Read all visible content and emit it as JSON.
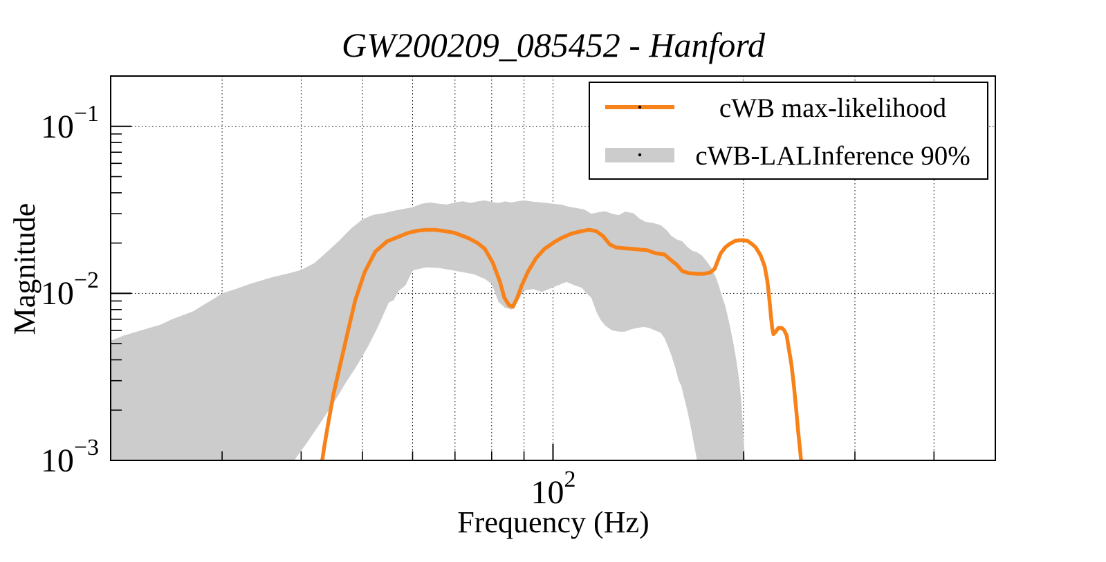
{
  "figure": {
    "background": "#ffffff",
    "accent_orange": "#f8821a",
    "band_gray": "#cccccc"
  },
  "chart_data": {
    "type": "line",
    "title": "GW200209_085452 - Hanford",
    "xlabel": "Frequency (Hz)",
    "ylabel": "Magnitude",
    "xscale": "log",
    "yscale": "log",
    "xlim": [
      20,
      500
    ],
    "ylim": [
      0.001,
      0.2
    ],
    "grid": {
      "x": [
        30,
        40,
        50,
        60,
        70,
        80,
        90,
        100,
        200,
        300,
        400
      ],
      "y": [
        0.01,
        0.1
      ],
      "style": "dotted"
    },
    "x_major_ticks": [
      100
    ],
    "x_minor_ticks": [
      30,
      40,
      50,
      60,
      70,
      80,
      90,
      200,
      300,
      400
    ],
    "y_major_ticks": [
      0.1,
      0.01,
      0.001
    ],
    "y_minor_ticks": [
      0.002,
      0.003,
      0.004,
      0.005,
      0.006,
      0.007,
      0.008,
      0.009,
      0.02,
      0.03,
      0.04,
      0.05,
      0.06,
      0.07,
      0.08,
      0.09
    ],
    "x_tick_labels": [
      {
        "base": "10",
        "exp": "2",
        "value": 100
      }
    ],
    "y_tick_labels": [
      {
        "base": "10",
        "exp": "−1",
        "value": 0.1
      },
      {
        "base": "10",
        "exp": "−2",
        "value": 0.01
      },
      {
        "base": "10",
        "exp": "−3",
        "value": 0.001
      }
    ],
    "legend": {
      "position": "upper right",
      "entries": [
        {
          "label": "cWB max-likelihood",
          "type": "line",
          "color": "#f8821a"
        },
        {
          "label": "cWB-LALInference 90%",
          "type": "band",
          "color": "#cccccc"
        }
      ]
    },
    "series": [
      {
        "name": "cWB max-likelihood",
        "type": "line",
        "color": "#f8821a",
        "points": [
          [
            43,
            0.0009
          ],
          [
            43.5,
            0.0012
          ],
          [
            44,
            0.00156
          ],
          [
            45,
            0.0025
          ],
          [
            46.3,
            0.004
          ],
          [
            47.4,
            0.0059
          ],
          [
            48.7,
            0.0091
          ],
          [
            50.4,
            0.0134
          ],
          [
            52.4,
            0.0178
          ],
          [
            54.7,
            0.0205
          ],
          [
            57,
            0.0218
          ],
          [
            59,
            0.023
          ],
          [
            61,
            0.0237
          ],
          [
            63,
            0.024
          ],
          [
            65,
            0.024
          ],
          [
            67.5,
            0.0236
          ],
          [
            70,
            0.023
          ],
          [
            73.5,
            0.0214
          ],
          [
            76,
            0.02
          ],
          [
            78,
            0.0185
          ],
          [
            80.3,
            0.0153
          ],
          [
            82.4,
            0.0118
          ],
          [
            83.8,
            0.0094
          ],
          [
            85.2,
            0.0085
          ],
          [
            86.4,
            0.0083
          ],
          [
            87.8,
            0.0094
          ],
          [
            89.2,
            0.0111
          ],
          [
            91.3,
            0.0135
          ],
          [
            94.1,
            0.0163
          ],
          [
            97,
            0.0185
          ],
          [
            100.7,
            0.0204
          ],
          [
            103,
            0.0214
          ],
          [
            107,
            0.0228
          ],
          [
            111,
            0.0236
          ],
          [
            114,
            0.024
          ],
          [
            117,
            0.0236
          ],
          [
            120,
            0.022
          ],
          [
            123,
            0.0196
          ],
          [
            126,
            0.0188
          ],
          [
            130,
            0.0186
          ],
          [
            135,
            0.0184
          ],
          [
            141,
            0.0181
          ],
          [
            145,
            0.0174
          ],
          [
            150,
            0.0171
          ],
          [
            153,
            0.016
          ],
          [
            157,
            0.0148
          ],
          [
            160,
            0.0136
          ],
          [
            164,
            0.0132
          ],
          [
            169,
            0.0131
          ],
          [
            173,
            0.0131
          ],
          [
            177,
            0.0133
          ],
          [
            180,
            0.014
          ],
          [
            184,
            0.0173
          ],
          [
            187,
            0.0188
          ],
          [
            190,
            0.0197
          ],
          [
            194,
            0.0206
          ],
          [
            197,
            0.0208
          ],
          [
            200,
            0.0208
          ],
          [
            203,
            0.0206
          ],
          [
            206,
            0.0198
          ],
          [
            209,
            0.0189
          ],
          [
            213,
            0.0168
          ],
          [
            216,
            0.0145
          ],
          [
            218,
            0.012
          ],
          [
            219.5,
            0.0096
          ],
          [
            221,
            0.0073
          ],
          [
            222,
            0.0062
          ],
          [
            223,
            0.0057
          ],
          [
            225,
            0.0059
          ],
          [
            227,
            0.0062
          ],
          [
            230,
            0.0062
          ],
          [
            232,
            0.006
          ],
          [
            234,
            0.0056
          ],
          [
            236,
            0.0046
          ],
          [
            238,
            0.0038
          ],
          [
            240,
            0.0029
          ],
          [
            242,
            0.0021
          ],
          [
            244,
            0.0015
          ],
          [
            246,
            0.0011
          ],
          [
            247.5,
            0.00085
          ]
        ]
      },
      {
        "name": "cWB-LALInference 90%",
        "type": "band",
        "color": "#cccccc",
        "upper": [
          [
            20,
            0.0052
          ],
          [
            21,
            0.0056
          ],
          [
            22,
            0.0059
          ],
          [
            23,
            0.0062
          ],
          [
            24,
            0.0065
          ],
          [
            25,
            0.007
          ],
          [
            26,
            0.0074
          ],
          [
            27,
            0.0078
          ],
          [
            28,
            0.0085
          ],
          [
            29,
            0.0092
          ],
          [
            30,
            0.01
          ],
          [
            31.5,
            0.0106
          ],
          [
            33,
            0.0113
          ],
          [
            34.5,
            0.0119
          ],
          [
            36,
            0.0125
          ],
          [
            38,
            0.0131
          ],
          [
            40,
            0.0138
          ],
          [
            42,
            0.0152
          ],
          [
            44,
            0.0178
          ],
          [
            46,
            0.0208
          ],
          [
            48,
            0.0245
          ],
          [
            50,
            0.0278
          ],
          [
            52,
            0.0295
          ],
          [
            54,
            0.0302
          ],
          [
            56,
            0.0312
          ],
          [
            58,
            0.032
          ],
          [
            60,
            0.0328
          ],
          [
            62,
            0.0344
          ],
          [
            64,
            0.035
          ],
          [
            66,
            0.0344
          ],
          [
            68,
            0.034
          ],
          [
            70,
            0.035
          ],
          [
            72,
            0.0356
          ],
          [
            74,
            0.0348
          ],
          [
            76,
            0.0355
          ],
          [
            78,
            0.036
          ],
          [
            80,
            0.0352
          ],
          [
            82,
            0.0348
          ],
          [
            84,
            0.0355
          ],
          [
            86,
            0.035
          ],
          [
            88,
            0.0356
          ],
          [
            90,
            0.036
          ],
          [
            93,
            0.0354
          ],
          [
            96,
            0.035
          ],
          [
            100,
            0.0344
          ],
          [
            103,
            0.034
          ],
          [
            106,
            0.033
          ],
          [
            109,
            0.0324
          ],
          [
            112,
            0.0318
          ],
          [
            115,
            0.03
          ],
          [
            118,
            0.0306
          ],
          [
            121,
            0.031
          ],
          [
            124,
            0.03
          ],
          [
            127,
            0.0294
          ],
          [
            130,
            0.0308
          ],
          [
            134,
            0.0302
          ],
          [
            137,
            0.028
          ],
          [
            140,
            0.0268
          ],
          [
            144,
            0.0264
          ],
          [
            148,
            0.0256
          ],
          [
            151,
            0.024
          ],
          [
            154,
            0.022
          ],
          [
            157,
            0.021
          ],
          [
            160,
            0.0205
          ],
          [
            163,
            0.019
          ],
          [
            166,
            0.018
          ],
          [
            169,
            0.0176
          ],
          [
            172,
            0.0168
          ],
          [
            175,
            0.0155
          ],
          [
            178,
            0.0142
          ],
          [
            181,
            0.0124
          ],
          [
            183,
            0.011
          ],
          [
            185,
            0.0096
          ],
          [
            187,
            0.0085
          ],
          [
            189,
            0.0072
          ],
          [
            191,
            0.006
          ],
          [
            193,
            0.0049
          ],
          [
            195,
            0.0039
          ],
          [
            197,
            0.003
          ],
          [
            198.5,
            0.0022
          ],
          [
            200,
            0.0014
          ],
          [
            201,
            0.00105
          ],
          [
            201.8,
            0.0008
          ]
        ],
        "lower": [
          [
            20,
            0.0004
          ],
          [
            25,
            0.00045
          ],
          [
            30,
            0.00055
          ],
          [
            34,
            0.0007
          ],
          [
            37,
            0.00085
          ],
          [
            39,
            0.001
          ],
          [
            41,
            0.0013
          ],
          [
            43,
            0.0017
          ],
          [
            45,
            0.0022
          ],
          [
            47,
            0.0029
          ],
          [
            49,
            0.0037
          ],
          [
            51,
            0.0048
          ],
          [
            53,
            0.0064
          ],
          [
            55,
            0.0088
          ],
          [
            56,
            0.0091
          ],
          [
            57,
            0.0103
          ],
          [
            58.5,
            0.0112
          ],
          [
            60,
            0.0137
          ],
          [
            63,
            0.0143
          ],
          [
            66,
            0.0142
          ],
          [
            69,
            0.0138
          ],
          [
            72,
            0.0134
          ],
          [
            75,
            0.013
          ],
          [
            78,
            0.0122
          ],
          [
            80,
            0.0114
          ],
          [
            82,
            0.0089
          ],
          [
            84,
            0.0082
          ],
          [
            86,
            0.008
          ],
          [
            88,
            0.009
          ],
          [
            90,
            0.0104
          ],
          [
            93,
            0.0106
          ],
          [
            96,
            0.0102
          ],
          [
            99,
            0.0107
          ],
          [
            102,
            0.0112
          ],
          [
            105,
            0.0117
          ],
          [
            108,
            0.0112
          ],
          [
            111,
            0.0108
          ],
          [
            113,
            0.01
          ],
          [
            115,
            0.0094
          ],
          [
            117,
            0.0078
          ],
          [
            119,
            0.0069
          ],
          [
            121,
            0.0064
          ],
          [
            124,
            0.006
          ],
          [
            127,
            0.0059
          ],
          [
            130,
            0.0059
          ],
          [
            133,
            0.0061
          ],
          [
            136,
            0.0062
          ],
          [
            139,
            0.0063
          ],
          [
            142,
            0.0062
          ],
          [
            145,
            0.006
          ],
          [
            148,
            0.0058
          ],
          [
            150,
            0.0054
          ],
          [
            152,
            0.0048
          ],
          [
            154,
            0.0042
          ],
          [
            156,
            0.0036
          ],
          [
            158,
            0.003
          ],
          [
            159.5,
            0.0028
          ],
          [
            161,
            0.0024
          ],
          [
            163,
            0.002
          ],
          [
            165,
            0.0016
          ],
          [
            167,
            0.00125
          ],
          [
            168.5,
            0.00105
          ],
          [
            170,
            0.00085
          ]
        ]
      }
    ]
  }
}
